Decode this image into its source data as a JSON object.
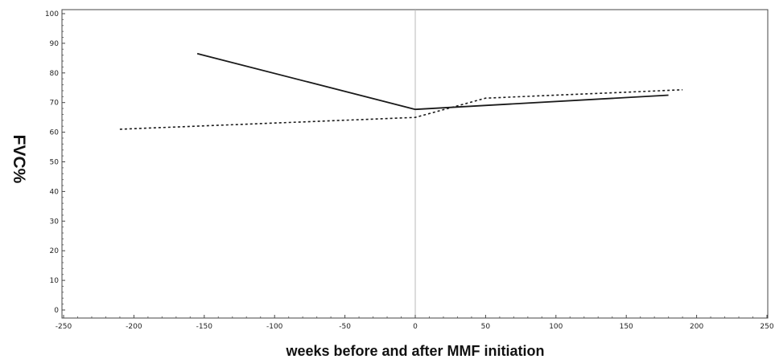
{
  "chart_data": {
    "type": "line",
    "title": "",
    "xlabel": "weeks before and after MMF initiation",
    "ylabel": "FVC%",
    "xlim": [
      -250,
      250
    ],
    "ylim": [
      0,
      100
    ],
    "x_ticks": [
      -250,
      -200,
      -150,
      -100,
      -50,
      0,
      50,
      100,
      150,
      200,
      250
    ],
    "y_ticks": [
      0,
      10,
      20,
      30,
      40,
      50,
      60,
      70,
      80,
      90,
      100
    ],
    "reference_line_x": 0,
    "grid": false,
    "legend": "none",
    "series": [
      {
        "style": "solid",
        "color": "#1a1a1a",
        "points": [
          {
            "x": -155,
            "y": 86.5
          },
          {
            "x": 0,
            "y": 67.7
          },
          {
            "x": 180,
            "y": 72.5
          }
        ]
      },
      {
        "style": "dashed",
        "color": "#1a1a1a",
        "points": [
          {
            "x": -210,
            "y": 61.0
          },
          {
            "x": 0,
            "y": 65.0
          },
          {
            "x": 50,
            "y": 71.5
          },
          {
            "x": 190,
            "y": 74.3
          }
        ]
      }
    ]
  }
}
